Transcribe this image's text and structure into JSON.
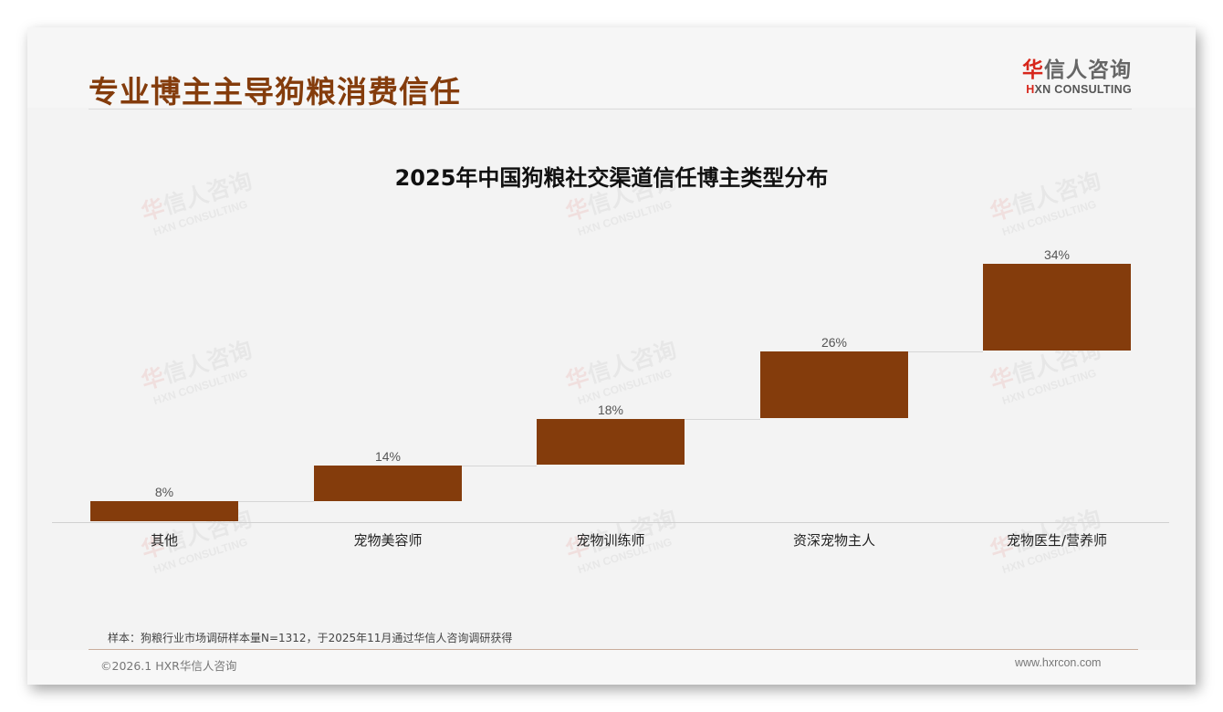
{
  "header": {
    "title": "专业博主主导狗粮消费信任",
    "logo_cn_red": "华",
    "logo_cn_rest": "信人咨询",
    "logo_en_red": "H",
    "logo_en_rest": "XN CONSULTING"
  },
  "watermark": {
    "cn_red": "华",
    "cn_rest": "信人咨询",
    "en": "HXN CONSULTING"
  },
  "chart_data": {
    "type": "bar",
    "subtype": "waterfall",
    "title": "2025年中国狗粮社交渠道信任博主类型分布",
    "categories": [
      "其他",
      "宠物美容师",
      "宠物训练师",
      "资深宠物主人",
      "宠物医生/营养师"
    ],
    "values": [
      8,
      14,
      18,
      26,
      34
    ],
    "value_labels": [
      "8%",
      "14%",
      "18%",
      "26%",
      "34%"
    ],
    "unit": "%",
    "xlabel": "",
    "ylabel": "",
    "ylim": [
      0,
      100
    ],
    "grid": false,
    "legend": "none",
    "bar_color": "#843c0c"
  },
  "footer": {
    "note": "样本：狗粮行业市场调研样本量N=1312，于2025年11月通过华信人咨询调研获得",
    "copyright": "©2026.1 HXR华信人咨询",
    "website": "www.hxrcon.com"
  }
}
